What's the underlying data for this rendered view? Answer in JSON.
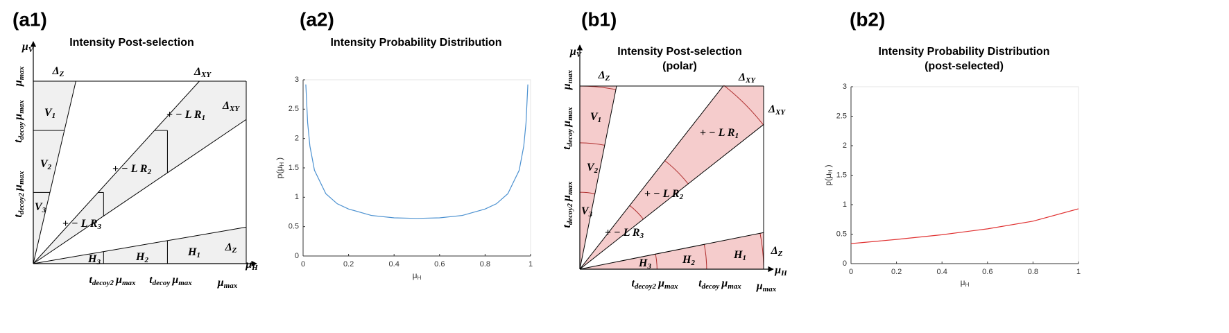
{
  "panel_labels": [
    "(a1)",
    "(a2)",
    "(b1)",
    "(b2)"
  ],
  "diagrams": [
    {
      "title": "Intensity Post-selection",
      "labels": [
        [
          [
            "μ",
            "V"
          ]
        ],
        [
          [
            "μ",
            "H"
          ]
        ],
        [
          [
            "Δ",
            "Z"
          ]
        ],
        [
          [
            "Δ",
            "XY"
          ]
        ],
        [
          [
            "Δ",
            "XY"
          ]
        ],
        [
          [
            "Δ",
            "Z"
          ]
        ],
        [
          [
            "V",
            "1"
          ]
        ],
        [
          [
            "V",
            "2"
          ]
        ],
        [
          [
            "V",
            "3"
          ]
        ],
        [
          [
            "+ − L R",
            "1"
          ]
        ],
        [
          [
            "+ − L R",
            "2"
          ]
        ],
        [
          [
            "+ − L R",
            "3"
          ]
        ],
        [
          [
            "H",
            "3"
          ]
        ],
        [
          [
            "H",
            "2"
          ]
        ],
        [
          [
            "H",
            "1"
          ]
        ],
        [
          [
            "t",
            "decoy2"
          ],
          [
            "μ",
            "max"
          ]
        ],
        [
          [
            "t",
            "decoy"
          ],
          [
            "μ",
            "max"
          ]
        ],
        [
          [
            "μ",
            "max"
          ]
        ],
        [
          [
            "μ",
            "max"
          ]
        ],
        [
          [
            "t",
            "decoy"
          ],
          [
            "μ",
            "max"
          ]
        ],
        [
          [
            "t",
            "decoy2"
          ],
          [
            "μ",
            "max"
          ]
        ]
      ]
    },
    {
      "title": "Intensity Post-selection",
      "subtitle": "(polar)",
      "labels": [
        [
          [
            "μ",
            "V"
          ]
        ],
        [
          [
            "μ",
            "H"
          ]
        ],
        [
          [
            "Δ",
            "Z"
          ]
        ],
        [
          [
            "Δ",
            "XY"
          ]
        ],
        [
          [
            "Δ",
            "XY"
          ]
        ],
        [
          [
            "Δ",
            "Z"
          ]
        ],
        [
          [
            "V",
            "1"
          ]
        ],
        [
          [
            "V",
            "2"
          ]
        ],
        [
          [
            "V",
            "3"
          ]
        ],
        [
          [
            "+ − L R",
            "1"
          ]
        ],
        [
          [
            "+ − L R",
            "2"
          ]
        ],
        [
          [
            "+ − L R",
            "3"
          ]
        ],
        [
          [
            "H",
            "3"
          ]
        ],
        [
          [
            "H",
            "2"
          ]
        ],
        [
          [
            "H",
            "1"
          ]
        ],
        [
          [
            "t",
            "decoy2"
          ],
          [
            "μ",
            "max"
          ]
        ],
        [
          [
            "t",
            "decoy"
          ],
          [
            "μ",
            "max"
          ]
        ],
        [
          [
            "μ",
            "max"
          ]
        ],
        [
          [
            "μ",
            "max"
          ]
        ],
        [
          [
            "t",
            "decoy"
          ],
          [
            "μ",
            "max"
          ]
        ],
        [
          [
            "t",
            "decoy2"
          ],
          [
            "μ",
            "max"
          ]
        ]
      ]
    }
  ],
  "chart_data": [
    {
      "type": "line",
      "title": "Intensity Probability Distribution",
      "xlabel": [
        [
          "μ",
          "H"
        ]
      ],
      "ylabel": [
        [
          "p(μ",
          "H"
        ],
        [
          ")"
        ]
      ],
      "x": [
        0.012,
        0.02,
        0.03,
        0.05,
        0.1,
        0.15,
        0.2,
        0.3,
        0.4,
        0.5,
        0.6,
        0.7,
        0.8,
        0.85,
        0.9,
        0.95,
        0.97,
        0.98,
        0.988
      ],
      "values": [
        2.92,
        2.27,
        1.87,
        1.46,
        1.06,
        0.89,
        0.8,
        0.69,
        0.65,
        0.64,
        0.65,
        0.69,
        0.8,
        0.89,
        1.06,
        1.46,
        1.87,
        2.27,
        2.92
      ],
      "color": "#4a90d0",
      "xlim": [
        0,
        1
      ],
      "xticks": [
        0,
        0.2,
        0.4,
        0.6,
        0.8,
        1
      ],
      "ylim": [
        0,
        3
      ],
      "yticks": [
        0,
        0.5,
        1,
        1.5,
        2,
        2.5,
        3
      ]
    },
    {
      "type": "line",
      "title": "Intensity Probability Distribution",
      "subtitle": "(post-selected)",
      "xlabel": [
        [
          "μ",
          "H"
        ]
      ],
      "ylabel": [
        [
          "p(μ",
          "H"
        ],
        [
          ")"
        ]
      ],
      "x": [
        0,
        0.2,
        0.4,
        0.6,
        0.8,
        1
      ],
      "values": [
        0.34,
        0.41,
        0.49,
        0.59,
        0.72,
        0.93
      ],
      "color": "#e03030",
      "xlim": [
        0,
        1
      ],
      "xticks": [
        0,
        0.2,
        0.4,
        0.6,
        0.8,
        1
      ],
      "ylim": [
        0,
        3
      ],
      "yticks": [
        0,
        0.5,
        1,
        1.5,
        2,
        2.5,
        3
      ]
    }
  ]
}
